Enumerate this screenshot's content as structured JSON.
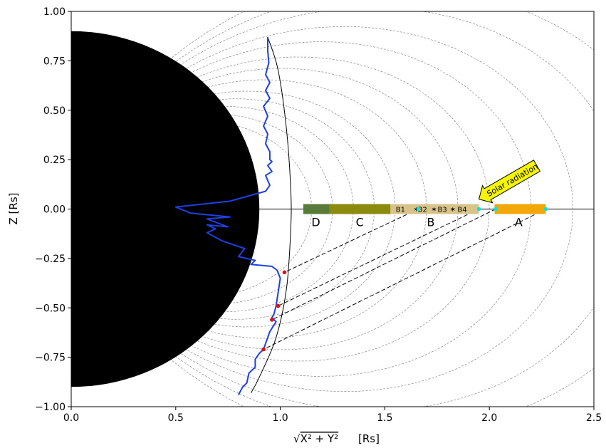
{
  "chart_data": {
    "type": "line",
    "xlabel_text": "[Rs]",
    "ylabel": "Z [Rs]",
    "xlim": [
      0.0,
      2.5
    ],
    "ylim": [
      -1.0,
      1.0
    ],
    "x_ticks": [
      0.0,
      0.5,
      1.0,
      1.5,
      2.0,
      2.5
    ],
    "x_tick_labels": [
      "0.0",
      "0.5",
      "1.0",
      "1.5",
      "2.0",
      "2.5"
    ],
    "y_ticks": [
      1.0,
      0.75,
      0.5,
      0.25,
      0.0,
      -0.25,
      -0.5,
      -0.75,
      -1.0
    ],
    "y_tick_labels": [
      "1.00",
      "0.75",
      "0.50",
      "0.25",
      "0.00",
      "−0.25",
      "−0.50",
      "−0.75",
      "−1.00"
    ],
    "saturn_radius": 0.9,
    "field_lines_L": [
      1.15,
      1.25,
      1.35,
      1.45,
      1.55,
      1.7,
      1.85,
      2.0,
      2.2,
      2.4,
      2.65,
      2.9,
      3.2
    ],
    "ring_segments": [
      {
        "name": "D",
        "x0": 1.11,
        "x1": 1.236,
        "color": "#5a7a3a"
      },
      {
        "name": "C",
        "x0": 1.236,
        "x1": 1.527,
        "color": "#8b8b10"
      },
      {
        "name": "B",
        "x0": 1.527,
        "x1": 1.95,
        "color": "#d8c48a"
      },
      {
        "name": "A",
        "x0": 2.025,
        "x1": 2.27,
        "color": "#f2a80a"
      }
    ],
    "segment_labels": [
      {
        "text": "D",
        "x": 1.17
      },
      {
        "text": "C",
        "x": 1.38
      },
      {
        "text": "B",
        "x": 1.72
      },
      {
        "text": "A",
        "x": 2.14
      }
    ],
    "sub_labels": [
      {
        "text": "B1",
        "x": 1.575
      },
      {
        "text": "B2",
        "x": 1.68
      },
      {
        "text": "B3",
        "x": 1.775
      },
      {
        "text": "B4",
        "x": 1.87
      }
    ],
    "sub_markers": [
      1.65,
      1.735,
      1.825
    ],
    "ring_edge_points": [
      1.66,
      1.95,
      2.03,
      2.27
    ],
    "projection_lines": [
      {
        "x0": 1.66,
        "y0": 0.0,
        "x1": 1.02,
        "y1": -0.32
      },
      {
        "x0": 1.95,
        "y0": 0.0,
        "x1": 0.99,
        "y1": -0.49
      },
      {
        "x0": 2.03,
        "y0": 0.0,
        "x1": 0.96,
        "y1": -0.56
      },
      {
        "x0": 2.27,
        "y0": 0.0,
        "x1": 0.92,
        "y1": -0.71
      }
    ],
    "trajectory_curve": [
      [
        0.94,
        0.87
      ],
      [
        0.99,
        0.7
      ],
      [
        1.03,
        0.4
      ],
      [
        1.05,
        0.1
      ],
      [
        1.05,
        -0.1
      ],
      [
        1.03,
        -0.4
      ],
      [
        0.98,
        -0.65
      ],
      [
        0.9,
        -0.85
      ],
      [
        0.86,
        -0.93
      ]
    ],
    "blue_profile": [
      [
        0.94,
        0.87
      ],
      [
        0.94,
        0.8
      ],
      [
        0.945,
        0.74
      ],
      [
        0.93,
        0.68
      ],
      [
        0.95,
        0.64
      ],
      [
        0.93,
        0.6
      ],
      [
        0.95,
        0.56
      ],
      [
        0.92,
        0.52
      ],
      [
        0.94,
        0.47
      ],
      [
        0.92,
        0.42
      ],
      [
        0.94,
        0.38
      ],
      [
        0.93,
        0.33
      ],
      [
        0.95,
        0.29
      ],
      [
        0.95,
        0.25
      ],
      [
        0.96,
        0.24
      ],
      [
        0.94,
        0.22
      ],
      [
        0.96,
        0.19
      ],
      [
        0.93,
        0.17
      ],
      [
        0.95,
        0.12
      ],
      [
        0.93,
        0.09
      ],
      [
        0.76,
        0.04
      ],
      [
        0.5,
        0.01
      ],
      [
        0.57,
        -0.02
      ],
      [
        0.76,
        -0.04
      ],
      [
        0.65,
        -0.05
      ],
      [
        0.75,
        -0.09
      ],
      [
        0.65,
        -0.08
      ],
      [
        0.69,
        -0.1
      ],
      [
        0.65,
        -0.12
      ],
      [
        0.72,
        -0.16
      ],
      [
        0.83,
        -0.2
      ],
      [
        0.8,
        -0.24
      ],
      [
        0.88,
        -0.26
      ],
      [
        0.86,
        -0.28
      ],
      [
        0.96,
        -0.29
      ],
      [
        0.985,
        -0.31
      ],
      [
        1.0,
        -0.35
      ],
      [
        0.99,
        -0.42
      ],
      [
        0.98,
        -0.49
      ],
      [
        0.97,
        -0.53
      ],
      [
        0.96,
        -0.55
      ],
      [
        0.98,
        -0.57
      ],
      [
        0.95,
        -0.62
      ],
      [
        0.93,
        -0.68
      ],
      [
        0.92,
        -0.71
      ],
      [
        0.9,
        -0.73
      ],
      [
        0.88,
        -0.76
      ],
      [
        0.88,
        -0.8
      ],
      [
        0.85,
        -0.83
      ],
      [
        0.84,
        -0.88
      ],
      [
        0.82,
        -0.9
      ],
      [
        0.8,
        -0.94
      ]
    ],
    "red_points": [
      [
        1.02,
        -0.32
      ],
      [
        0.99,
        -0.49
      ],
      [
        0.96,
        -0.56
      ],
      [
        0.92,
        -0.71
      ]
    ],
    "annotation": {
      "text": "Solar radiation",
      "x_tip": 1.95,
      "y_tip": 0.05
    }
  },
  "colors": {
    "saturn": "#000000",
    "blue_line": "#1f3fe0",
    "red_point": "#e01010",
    "cyan_point": "#10e0e0",
    "field_line": "#888888",
    "callout_fill": "#f5f500"
  }
}
